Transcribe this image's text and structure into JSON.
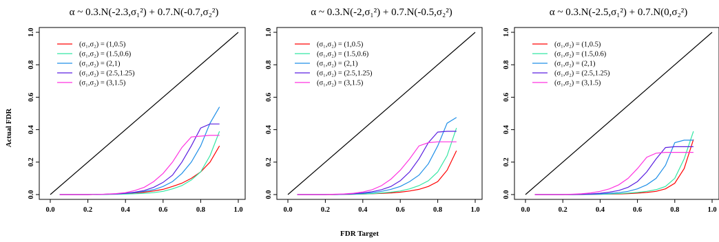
{
  "figure": {
    "ylabel": "Actual FDR",
    "xlabel": "FDR Target"
  },
  "legend": {
    "entries": [
      {
        "label": "(σ₁,σ₂) = (1,0.5)",
        "color": "#ff0000"
      },
      {
        "label": "(σ₁,σ₂) = (1.5,0.6)",
        "color": "#33e6a3"
      },
      {
        "label": "(σ₁,σ₂) = (2,1)",
        "color": "#1f8fe8"
      },
      {
        "label": "(σ₁,σ₂) = (2.5,1.25)",
        "color": "#5a1ee0"
      },
      {
        "label": "(σ₁,σ₂) = (3,1.5)",
        "color": "#ff33e0"
      }
    ]
  },
  "chart_data": [
    {
      "type": "line",
      "title": "α ~ 0.3.N(-2.3,σ₁²) + 0.7.N(-0.7,σ₂²)",
      "xlim": [
        0,
        1
      ],
      "ylim": [
        0,
        1
      ],
      "xticks": [
        "0.0",
        "0.2",
        "0.4",
        "0.6",
        "0.8",
        "1.0"
      ],
      "yticks": [
        "0.0",
        "0.2",
        "0.4",
        "0.6",
        "0.8",
        "1.0"
      ],
      "grid": false,
      "legend_position": "top-left",
      "reference_line": {
        "x": [
          0,
          1
        ],
        "y": [
          0,
          1
        ],
        "color": "#000000"
      },
      "x": [
        0.05,
        0.1,
        0.15,
        0.2,
        0.25,
        0.3,
        0.35,
        0.4,
        0.45,
        0.5,
        0.55,
        0.6,
        0.65,
        0.7,
        0.75,
        0.8,
        0.85,
        0.9
      ],
      "series": [
        {
          "name": "(σ₁,σ₂) = (1,0.5)",
          "color": "#ff0000",
          "values": [
            0,
            0,
            0,
            0,
            0.001,
            0.002,
            0.004,
            0.006,
            0.01,
            0.015,
            0.022,
            0.032,
            0.05,
            0.07,
            0.1,
            0.14,
            0.2,
            0.3
          ]
        },
        {
          "name": "(σ₁,σ₂) = (1.5,0.6)",
          "color": "#33e6a3",
          "values": [
            0,
            0,
            0,
            0,
            0,
            0.001,
            0.002,
            0.003,
            0.005,
            0.008,
            0.012,
            0.02,
            0.035,
            0.055,
            0.09,
            0.14,
            0.24,
            0.39
          ]
        },
        {
          "name": "(σ₁,σ₂) = (2,1)",
          "color": "#1f8fe8",
          "values": [
            0,
            0,
            0,
            0,
            0.001,
            0.002,
            0.004,
            0.007,
            0.012,
            0.02,
            0.03,
            0.05,
            0.08,
            0.13,
            0.2,
            0.3,
            0.44,
            0.54
          ]
        },
        {
          "name": "(σ₁,σ₂) = (2.5,1.25)",
          "color": "#5a1ee0",
          "values": [
            0,
            0,
            0,
            0,
            0.001,
            0.002,
            0.004,
            0.008,
            0.015,
            0.025,
            0.045,
            0.075,
            0.12,
            0.2,
            0.3,
            0.41,
            0.435,
            0.435
          ]
        },
        {
          "name": "(σ₁,σ₂) = (3,1.5)",
          "color": "#ff33e0",
          "values": [
            0,
            0,
            0,
            0,
            0.001,
            0.003,
            0.006,
            0.012,
            0.025,
            0.045,
            0.08,
            0.13,
            0.2,
            0.29,
            0.355,
            0.36,
            0.365,
            0.365
          ]
        }
      ]
    },
    {
      "type": "line",
      "title": "α ~ 0.3.N(-2,σ₁²) + 0.7.N(-0.5,σ₂²)",
      "xlim": [
        0,
        1
      ],
      "ylim": [
        0,
        1
      ],
      "xticks": [
        "0.0",
        "0.2",
        "0.4",
        "0.6",
        "0.8",
        "1.0"
      ],
      "yticks": [
        "0.0",
        "0.2",
        "0.4",
        "0.6",
        "0.8",
        "1.0"
      ],
      "grid": false,
      "legend_position": "top-left",
      "reference_line": {
        "x": [
          0,
          1
        ],
        "y": [
          0,
          1
        ],
        "color": "#000000"
      },
      "x": [
        0.05,
        0.1,
        0.15,
        0.2,
        0.25,
        0.3,
        0.35,
        0.4,
        0.45,
        0.5,
        0.55,
        0.6,
        0.65,
        0.7,
        0.75,
        0.8,
        0.85,
        0.9
      ],
      "series": [
        {
          "name": "(σ₁,σ₂) = (1,0.5)",
          "color": "#ff0000",
          "values": [
            0,
            0,
            0,
            0,
            0,
            0.001,
            0.002,
            0.003,
            0.005,
            0.007,
            0.01,
            0.015,
            0.022,
            0.032,
            0.05,
            0.08,
            0.15,
            0.27
          ]
        },
        {
          "name": "(σ₁,σ₂) = (1.5,0.6)",
          "color": "#33e6a3",
          "values": [
            0,
            0,
            0,
            0,
            0,
            0.001,
            0.002,
            0.004,
            0.006,
            0.01,
            0.015,
            0.022,
            0.035,
            0.055,
            0.085,
            0.14,
            0.24,
            0.41
          ]
        },
        {
          "name": "(σ₁,σ₂) = (2,1)",
          "color": "#1f8fe8",
          "values": [
            0,
            0,
            0,
            0,
            0.001,
            0.002,
            0.004,
            0.007,
            0.012,
            0.02,
            0.032,
            0.05,
            0.08,
            0.12,
            0.19,
            0.3,
            0.44,
            0.475
          ]
        },
        {
          "name": "(σ₁,σ₂) = (2.5,1.25)",
          "color": "#5a1ee0",
          "values": [
            0,
            0,
            0,
            0,
            0.001,
            0.002,
            0.005,
            0.01,
            0.018,
            0.03,
            0.05,
            0.085,
            0.14,
            0.22,
            0.32,
            0.385,
            0.39,
            0.39
          ]
        },
        {
          "name": "(σ₁,σ₂) = (3,1.5)",
          "color": "#ff33e0",
          "values": [
            0,
            0,
            0,
            0,
            0.002,
            0.004,
            0.008,
            0.016,
            0.03,
            0.055,
            0.095,
            0.15,
            0.22,
            0.3,
            0.32,
            0.325,
            0.325,
            0.325
          ]
        }
      ]
    },
    {
      "type": "line",
      "title": "α ~ 0.3.N(-2.5,σ₁²) + 0.7.N(0,σ₂²)",
      "xlim": [
        0,
        1
      ],
      "ylim": [
        0,
        1
      ],
      "xticks": [
        "0.0",
        "0.2",
        "0.4",
        "0.6",
        "0.8",
        "1.0"
      ],
      "yticks": [
        "0.0",
        "0.2",
        "0.4",
        "0.6",
        "0.8",
        "1.0"
      ],
      "grid": false,
      "legend_position": "top-left",
      "reference_line": {
        "x": [
          0,
          1
        ],
        "y": [
          0,
          1
        ],
        "color": "#000000"
      },
      "x": [
        0.05,
        0.1,
        0.15,
        0.2,
        0.25,
        0.3,
        0.35,
        0.4,
        0.45,
        0.5,
        0.55,
        0.6,
        0.65,
        0.7,
        0.75,
        0.8,
        0.85,
        0.9
      ],
      "series": [
        {
          "name": "(σ₁,σ₂) = (1,0.5)",
          "color": "#ff0000",
          "values": [
            0,
            0,
            0,
            0,
            0,
            0,
            0.001,
            0.002,
            0.003,
            0.004,
            0.006,
            0.009,
            0.013,
            0.02,
            0.035,
            0.07,
            0.16,
            0.34
          ]
        },
        {
          "name": "(σ₁,σ₂) = (1.5,0.6)",
          "color": "#33e6a3",
          "values": [
            0,
            0,
            0,
            0,
            0,
            0.001,
            0.001,
            0.002,
            0.004,
            0.006,
            0.009,
            0.013,
            0.02,
            0.03,
            0.05,
            0.1,
            0.22,
            0.39
          ]
        },
        {
          "name": "(σ₁,σ₂) = (2,1)",
          "color": "#1f8fe8",
          "values": [
            0,
            0,
            0,
            0,
            0,
            0.001,
            0.002,
            0.004,
            0.007,
            0.012,
            0.02,
            0.035,
            0.06,
            0.1,
            0.18,
            0.32,
            0.335,
            0.335
          ]
        },
        {
          "name": "(σ₁,σ₂) = (2.5,1.25)",
          "color": "#5a1ee0",
          "values": [
            0,
            0,
            0,
            0,
            0.001,
            0.002,
            0.004,
            0.008,
            0.015,
            0.025,
            0.045,
            0.08,
            0.14,
            0.22,
            0.29,
            0.295,
            0.295,
            0.295
          ]
        },
        {
          "name": "(σ₁,σ₂) = (3,1.5)",
          "color": "#ff33e0",
          "values": [
            0,
            0,
            0,
            0,
            0.002,
            0.005,
            0.01,
            0.02,
            0.035,
            0.06,
            0.1,
            0.16,
            0.23,
            0.255,
            0.26,
            0.26,
            0.26,
            0.26
          ]
        }
      ]
    }
  ]
}
